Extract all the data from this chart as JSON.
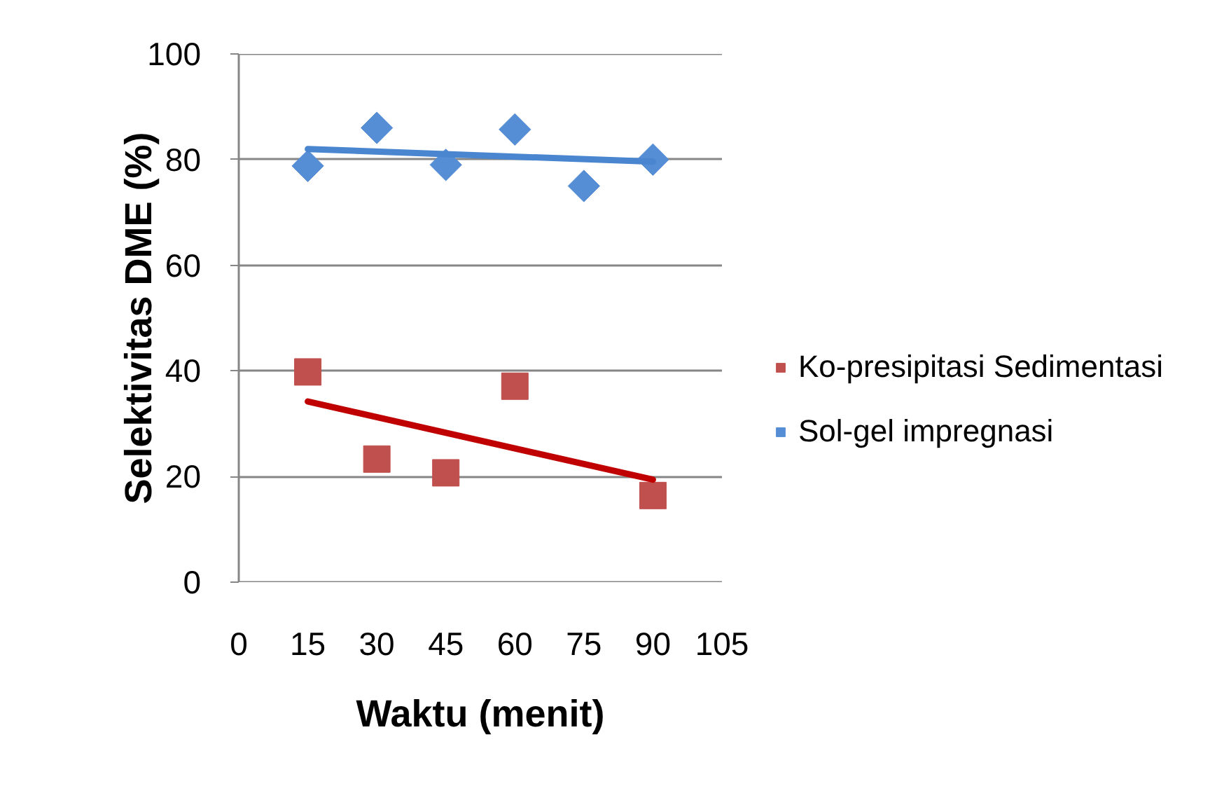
{
  "chart_data": {
    "type": "scatter",
    "xlabel": "Waktu (menit)",
    "ylabel": "Selektivitas DME (%)",
    "xlim": [
      0,
      105
    ],
    "xticks": [
      0,
      15,
      30,
      45,
      60,
      75,
      90,
      105
    ],
    "ylim": [
      0,
      100
    ],
    "yticks": [
      0,
      20,
      40,
      60,
      80,
      100
    ],
    "grid": "y",
    "legend": "right",
    "series": [
      {
        "name": "Ko-presipitasi Sedimentasi",
        "marker": "square",
        "color": "#c0504d",
        "x": [
          15,
          30,
          45,
          60,
          90
        ],
        "values": [
          39.8,
          23.3,
          20.7,
          37.1,
          16.4
        ]
      },
      {
        "name": "Sol-gel impregnasi",
        "marker": "diamond",
        "color": "#558ed5",
        "x": [
          15,
          30,
          45,
          60,
          75,
          90
        ],
        "values": [
          78.8,
          86,
          79,
          85.7,
          75,
          80
        ]
      },
      {
        "type": "line",
        "color": "#c00000",
        "x": [
          15,
          90
        ],
        "values": [
          34.2,
          19.4
        ]
      },
      {
        "type": "line",
        "color": "#4a86d0",
        "x": [
          15,
          90
        ],
        "values": [
          82,
          79.6
        ]
      }
    ]
  }
}
